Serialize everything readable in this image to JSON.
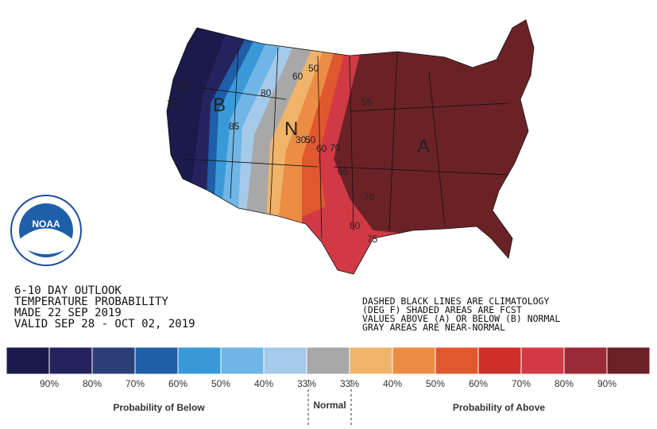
{
  "title_lines": [
    "6-10 DAY OUTLOOK",
    "TEMPERATURE PROBABILITY",
    "MADE  22 SEP 2019",
    "VALID  SEP 28 - OCT 02, 2019"
  ],
  "note_lines": [
    "DASHED BLACK LINES ARE CLIMATOLOGY",
    "(DEG F) SHADED AREAS ARE FCST",
    "VALUES ABOVE (A) OR BELOW (B) NORMAL",
    "GRAY AREAS ARE NEAR-NORMAL"
  ],
  "logo": "NOAA",
  "map_labels": [
    "B",
    "N",
    "A",
    "80",
    "70",
    "85",
    "60",
    "50",
    "80",
    "30",
    "50",
    "60",
    "70",
    "55",
    "65",
    "70",
    "80",
    "75"
  ],
  "legend": {
    "colors": [
      "#1c1a4a",
      "#25235e",
      "#2b3e78",
      "#1f5ea8",
      "#3a9ad9",
      "#6fb6e6",
      "#a5c9e8",
      "#a8a8a8",
      "#efb46a",
      "#ec8c45",
      "#e0582f",
      "#cf2f2a",
      "#d13a45",
      "#9a2b36",
      "#6b2226"
    ],
    "labels": [
      "90%",
      "80%",
      "70%",
      "60%",
      "50%",
      "40%",
      "33%",
      "33%",
      "40%",
      "50%",
      "60%",
      "70%",
      "80%",
      "90%"
    ],
    "below": "Probability of Below",
    "normal": "Normal",
    "above": "Probability of Above"
  }
}
